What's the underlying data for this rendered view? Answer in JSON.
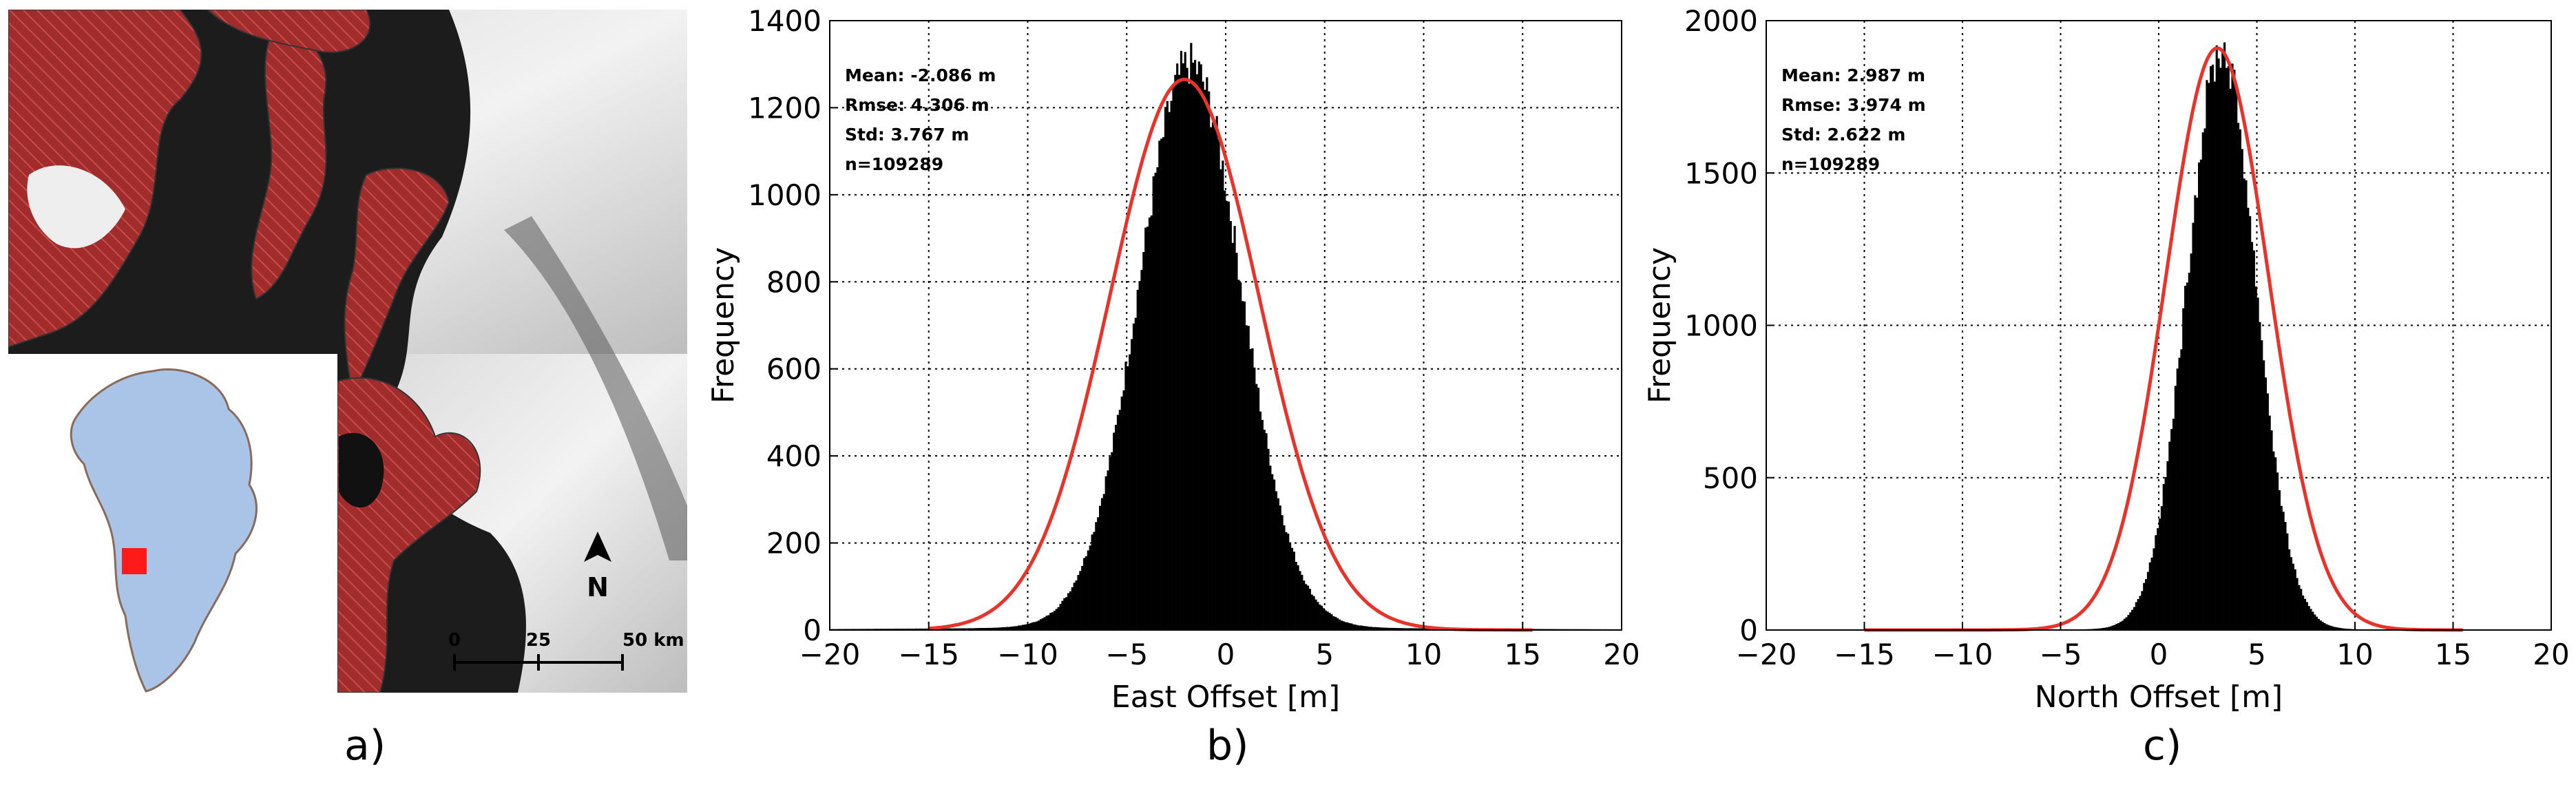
{
  "panels": {
    "a": {
      "label": "a)",
      "north_label": "N",
      "scale_ticks": [
        "0",
        "25",
        "50 km"
      ]
    },
    "b": {
      "label": "b)"
    },
    "c": {
      "label": "c)"
    }
  },
  "colors": {
    "histogram": "#000000",
    "fit_curve": "#e8332a",
    "glacier_hatch": "#a83232",
    "greenland_fill": "#a9c4e6",
    "study_area": "#ff1a1a"
  },
  "chart_data": [
    {
      "type": "histogram",
      "xlabel": "East Offset [m]",
      "ylabel": "Frequency",
      "xlim": [
        -20,
        20
      ],
      "ylim": [
        0,
        1400
      ],
      "xticks": [
        "−20",
        "−15",
        "−10",
        "−5",
        "0",
        "5",
        "10",
        "15",
        "20"
      ],
      "yticks": [
        "0",
        "200",
        "400",
        "600",
        "800",
        "1000",
        "1200",
        "1400"
      ],
      "grid": true,
      "stats": [
        "Mean: -2.086 m",
        "Rmse: 4.306 m",
        "Std: 3.767 m",
        "n=109289"
      ],
      "histogram": {
        "mean": -1.8,
        "sd": 2.6,
        "peak": 1290,
        "tail_level": 10,
        "bin_width": 0.1
      },
      "fit_curve": {
        "mean": -2.086,
        "sd": 3.767,
        "peak": 1265
      }
    },
    {
      "type": "histogram",
      "xlabel": "North Offset [m]",
      "ylabel": "Frequency",
      "xlim": [
        -20,
        20
      ],
      "ylim": [
        0,
        2000
      ],
      "xticks": [
        "−20",
        "−15",
        "−10",
        "−5",
        "0",
        "5",
        "10",
        "15",
        "20"
      ],
      "yticks": [
        "0",
        "500",
        "1000",
        "1500",
        "2000"
      ],
      "grid": true,
      "stats": [
        "Mean: 2.987 m",
        "Rmse: 3.974 m",
        "Std: 2.622 m",
        "n=109289"
      ],
      "histogram": {
        "mean": 3.2,
        "sd": 1.75,
        "peak": 1900,
        "tail_level": 3,
        "bin_width": 0.1
      },
      "fit_curve": {
        "mean": 2.987,
        "sd": 2.622,
        "peak": 1910
      }
    }
  ]
}
